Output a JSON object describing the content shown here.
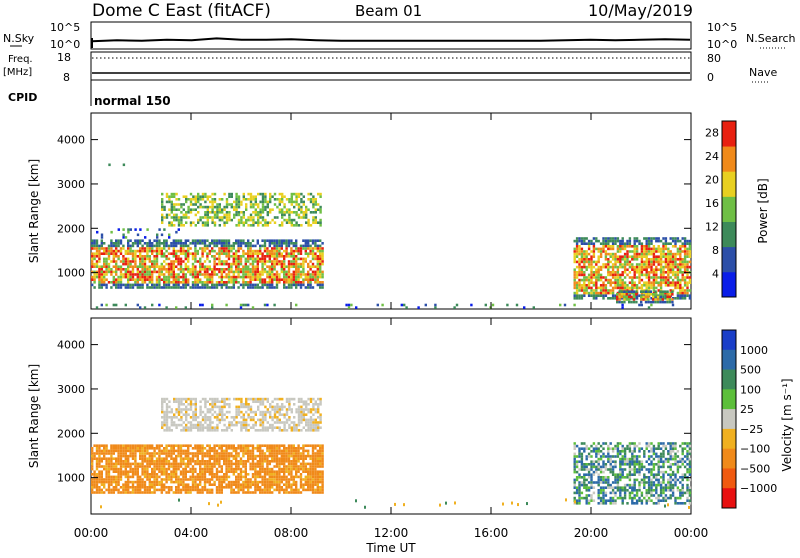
{
  "header": {
    "station": "Dome C East (fitACF)",
    "beam": "Beam 01",
    "date": "10/May/2019"
  },
  "labels": {
    "nsky": "N.Sky",
    "freq_line1": "Freq.",
    "freq_line2": "[MHz]",
    "cpid": "CPID",
    "nsearch": "N.Search",
    "nave": "Nave",
    "cpid_value": "normal 150"
  },
  "chart_data": [
    {
      "type": "line",
      "panel": "noise",
      "left_ticks": [
        "10^5",
        "10^0"
      ],
      "right_ticks": [
        "10^5",
        "10^0"
      ],
      "series": [
        {
          "name": "N.Sky",
          "x": [
            "00:00",
            "01:00",
            "02:00",
            "03:00",
            "04:00",
            "05:00",
            "06:00",
            "07:00",
            "08:00",
            "09:00",
            "10:00",
            "11:00",
            "12:00",
            "13:00",
            "14:00",
            "15:00",
            "16:00",
            "17:00",
            "18:00",
            "19:00",
            "20:00",
            "21:00",
            "22:00",
            "23:00",
            "00:00"
          ],
          "values": [
            1.2,
            1.4,
            1.3,
            1.5,
            1.4,
            1.8,
            1.5,
            1.5,
            1.6,
            1.4,
            1.3,
            1.3,
            1.3,
            1.3,
            1.3,
            1.3,
            1.3,
            1.3,
            1.3,
            1.4,
            1.5,
            1.4,
            1.5,
            1.6,
            1.5
          ]
        }
      ]
    },
    {
      "type": "line",
      "panel": "frequency",
      "left_ticks": [
        "18",
        "8"
      ],
      "right_ticks": [
        "80",
        "0"
      ],
      "series": [
        {
          "name": "Freq.",
          "values": [
            10.6,
            10.6
          ]
        },
        {
          "name": "Nave",
          "values": [
            78,
            78
          ]
        }
      ]
    },
    {
      "type": "heatmap",
      "panel": "power",
      "ylabel": "Slant Range [km]",
      "y_ticks": [
        1000,
        2000,
        3000,
        4000
      ],
      "ylim": [
        180,
        4600
      ],
      "x_ticks": [
        "00:00",
        "04:00",
        "08:00",
        "12:00",
        "16:00",
        "20:00",
        "00:00"
      ],
      "xlim_hours": [
        0,
        24
      ],
      "colorbar": {
        "label": "Power [dB]",
        "ticks": [
          4,
          8,
          12,
          16,
          20,
          24,
          28
        ],
        "range": [
          0,
          30
        ],
        "colors": [
          "#0a1ee8",
          "#2c4fa8",
          "#3d8a5a",
          "#6fbf45",
          "#e8d021",
          "#f08a1a",
          "#e82010"
        ]
      },
      "echo_regions": [
        {
          "t": [
            0.0,
            9.3
          ],
          "range_km": [
            650,
            1750
          ],
          "level": "strong"
        },
        {
          "t": [
            2.8,
            9.2
          ],
          "range_km": [
            2050,
            2800
          ],
          "level": "moderate"
        },
        {
          "t": [
            0.2,
            3.5
          ],
          "range_km": [
            1800,
            2000
          ],
          "level": "weak"
        },
        {
          "t": [
            0.5,
            1.7
          ],
          "range_km": [
            3450,
            3520
          ],
          "level": "weak"
        },
        {
          "t": [
            19.3,
            24.0
          ],
          "range_km": [
            400,
            1800
          ],
          "level": "strong"
        },
        {
          "t": [
            21.0,
            23.3
          ],
          "range_km": [
            350,
            600
          ],
          "level": "strong"
        },
        {
          "t": [
            0.0,
            24.0
          ],
          "range_km": [
            200,
            300
          ],
          "level": "weak"
        }
      ]
    },
    {
      "type": "heatmap",
      "panel": "velocity",
      "ylabel": "Slant Range [km]",
      "y_ticks": [
        1000,
        2000,
        3000,
        4000
      ],
      "ylim": [
        180,
        4600
      ],
      "x_ticks": [
        "00:00",
        "04:00",
        "08:00",
        "12:00",
        "16:00",
        "20:00",
        "00:00"
      ],
      "xlim_hours": [
        0,
        24
      ],
      "xlabel": "Time UT",
      "colorbar": {
        "label": "Velocity [m s⁻¹]",
        "ticks": [
          "1000",
          "500",
          "100",
          "25",
          "−25",
          "−100",
          "−500",
          "−1000"
        ],
        "colors": [
          "#1a3ec8",
          "#2c6aa8",
          "#3d8a5a",
          "#5cbf3a",
          "#c8c8c0",
          "#f0b020",
          "#f08a1a",
          "#f05a10",
          "#e81010"
        ]
      },
      "echo_regions": [
        {
          "t": [
            0.0,
            9.3
          ],
          "range_km": [
            650,
            1750
          ],
          "velocity": "-100"
        },
        {
          "t": [
            2.8,
            9.2
          ],
          "range_km": [
            2050,
            2800
          ],
          "velocity": "0"
        },
        {
          "t": [
            19.3,
            24.0
          ],
          "range_km": [
            400,
            1800
          ],
          "velocity": "100"
        }
      ]
    }
  ]
}
